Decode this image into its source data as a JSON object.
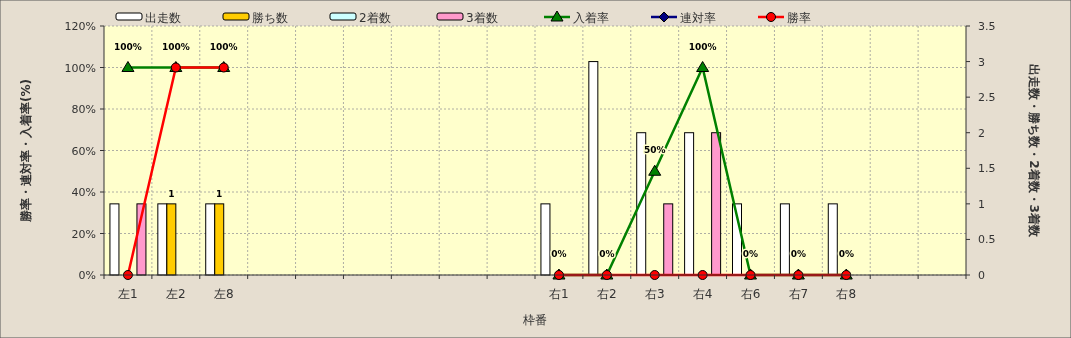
{
  "chart_data": {
    "type": "bar",
    "xlabel": "枠番",
    "ylabel": "勝率・連対率・入着率(%)",
    "y2label": "出走数・勝ち数・2着数・3着数",
    "categories": [
      "左1",
      "左2",
      "左8",
      null,
      null,
      null,
      null,
      null,
      null,
      "右1",
      "右2",
      "右3",
      "右4",
      "右6",
      "右7",
      "右8",
      null,
      null
    ],
    "series": [
      {
        "name": "出走数",
        "axis": "y2",
        "color": "#ffffff",
        "values": [
          1,
          1,
          1,
          null,
          null,
          null,
          null,
          null,
          null,
          1,
          3,
          2,
          2,
          1,
          1,
          1,
          null,
          null
        ]
      },
      {
        "name": "勝ち数",
        "axis": "y2",
        "color": "#ffcc00",
        "values": [
          0,
          1,
          1,
          null,
          null,
          null,
          null,
          null,
          null,
          0,
          0,
          0,
          0,
          0,
          0,
          0,
          null,
          null
        ],
        "value_labels": [
          null,
          "1",
          "1",
          null,
          null,
          null,
          null,
          null,
          null,
          null,
          null,
          null,
          null,
          null,
          null,
          null,
          null,
          null
        ]
      },
      {
        "name": "2着数",
        "axis": "y2",
        "color": "#ccffff",
        "values": [
          0,
          0,
          0,
          null,
          null,
          null,
          null,
          null,
          null,
          0,
          0,
          0,
          0,
          0,
          0,
          0,
          null,
          null
        ]
      },
      {
        "name": "3着数",
        "axis": "y2",
        "color": "#ff99cc",
        "values": [
          1,
          0,
          0,
          null,
          null,
          null,
          null,
          null,
          null,
          0,
          0,
          1,
          2,
          0,
          0,
          0,
          null,
          null
        ]
      },
      {
        "name": "入着率",
        "type": "line",
        "marker": "triangle",
        "color": "#008000",
        "values": [
          100,
          100,
          100,
          null,
          null,
          null,
          null,
          null,
          null,
          0,
          0,
          50,
          100,
          0,
          0,
          0,
          null,
          null
        ],
        "value_labels": [
          "100%",
          "100%",
          "100%",
          null,
          null,
          null,
          null,
          null,
          null,
          "0%",
          "0%",
          "50%",
          "100%",
          "0%",
          "0%",
          "0%",
          null,
          null
        ]
      },
      {
        "name": "連対率",
        "type": "line",
        "marker": "diamond",
        "color": "#000080",
        "values": [
          null,
          null,
          null,
          null,
          null,
          null,
          null,
          null,
          null,
          null,
          null,
          null,
          null,
          null,
          null,
          null,
          null,
          null
        ]
      },
      {
        "name": "勝率",
        "type": "line",
        "marker": "circle",
        "color": "#ff0000",
        "values": [
          0,
          100,
          100,
          null,
          null,
          null,
          null,
          null,
          null,
          0,
          0,
          0,
          0,
          0,
          0,
          0,
          null,
          null
        ]
      }
    ],
    "ylim": [
      0,
      120
    ],
    "yticks": [
      {
        "value": 0,
        "label": "0%"
      },
      {
        "value": 20,
        "label": "20%"
      },
      {
        "value": 40,
        "label": "40%"
      },
      {
        "value": 60,
        "label": "60%"
      },
      {
        "value": 80,
        "label": "80%"
      },
      {
        "value": 100,
        "label": "100%"
      },
      {
        "value": 120,
        "label": "120%"
      }
    ],
    "y2lim": [
      0,
      3.5
    ],
    "y2ticks": [
      0,
      0.5,
      1,
      1.5,
      2,
      2.5,
      3,
      3.5
    ],
    "grid": true,
    "legend": "top"
  }
}
